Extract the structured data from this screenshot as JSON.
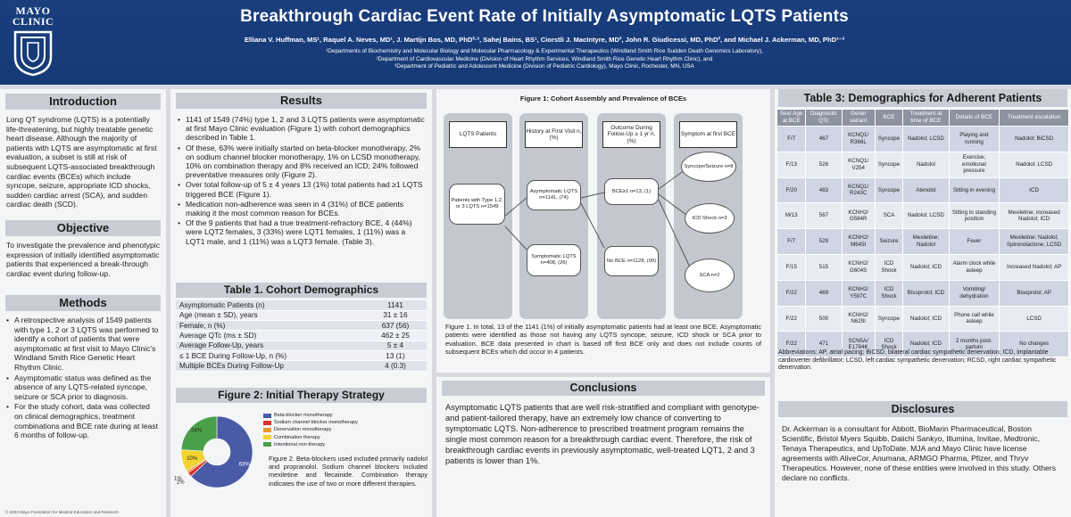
{
  "header": {
    "logo_line1": "MAYO",
    "logo_line2": "CLINIC",
    "title": "Breakthrough Cardiac Event Rate of Initially Asymptomatic LQTS Patients",
    "authors": "Elliana V. Huffman, MS¹, Raquel A. Neves, MD¹, J. Martijn Bos, MD, PhD²·³, Sahej Bains, BS¹, Ciorstli J. MacIntyre, MD², John R. Giudicessi, MD, PhD², and Michael J. Ackerman, MD, PhD¹⁻³",
    "affiliations": [
      "¹Departments of Biochemistry and Molecular Biology and Molecular Pharmacology & Experimental Therapeutics (Windland Smith Rice Sudden Death Genomics Laboratory),",
      "²Department of Cardiovascular Medicine (Division of Heart Rhythm Services, Windland Smith Rice Genetic Heart Rhythm Clinic), and",
      "³Department of Pediatric and Adolescent Medicine (Division of Pediatric Cardiology), Mayo Clinic, Rochester, MN, USA"
    ]
  },
  "intro": {
    "title": "Introduction",
    "text": "Long QT syndrome (LQTS) is a potentially life-threatening, but highly treatable genetic heart disease. Although the majority of patients with LQTS are asymptomatic at first evaluation, a subset is still at risk of subsequent LQTS-associated breakthrough cardiac events (BCEs) which include syncope, seizure, appropriate ICD shocks, sudden cardiac arrest (SCA), and sudden cardiac death (SCD)."
  },
  "objective": {
    "title": "Objective",
    "text": "To investigate the prevalence and phenotypic expression of initially identified asymptomatic patients that experienced a break-through cardiac event during follow-up."
  },
  "methods": {
    "title": "Methods",
    "items": [
      "A retrospective analysis of 1549 patients with type 1, 2 or 3 LQTS was performed to identify a cohort of patients that were asymptomatic at first visit to Mayo Clinic's Windland Smith Rice Genetic Heart Rhythm Clinic.",
      "Asymptomatic status was defined as the absence of any LQTS-related syncope, seizure or SCA prior to diagnosis.",
      "For the study cohort, data was collected on clinical demographics, treatment combinations and BCE rate during at least 6 months of follow-up."
    ]
  },
  "footer": "© 2023 Mayo Foundation for Medical Education and Research",
  "results": {
    "title": "Results",
    "items": [
      "1141 of 1549 (74%) type 1, 2 and 3 LQTS patients were asymptomatic at first Mayo Clinic evaluation (Figure 1) with cohort demographics described in Table 1.",
      "Of these, 63% were initially started on beta-blocker monotherapy, 2% on sodium channel blocker monotherapy, 1% on LCSD monotherapy, 10% on combination therapy and 8% received an ICD; 24% followed preventative measures only (Figure 2).",
      "Over total follow-up of 5 ± 4 years 13 (1%) total patients had ≥1 LQTS triggered BCE (Figure 1).",
      "Medication non-adherence was seen in 4 (31%) of BCE patients making it the most common reason for BCEs.",
      "Of the 9 patients that had a true treatment-refractory BCE, 4 (44%) were LQT2 females, 3 (33%) were LQT1 females, 1 (11%) was a LQT1 male, and 1 (11%) was a LQT3 female. (Table 3)."
    ]
  },
  "table1": {
    "title": "Table 1. Cohort Demographics",
    "rows": [
      [
        "Asymptomatic Patients (n)",
        "1141"
      ],
      [
        "Age (mean ± SD), years",
        "31 ± 16"
      ],
      [
        "Female, n (%)",
        "637 (56)"
      ],
      [
        "Average QTc (ms ± SD)",
        "462 ± 25"
      ],
      [
        "Average Follow-Up, years",
        "5 ± 4"
      ],
      [
        "≤ 1 BCE During Follow-Up, n (%)",
        "13 (1)"
      ],
      [
        "Multiple BCEs During Follow-Up",
        "4 (0.3)"
      ]
    ]
  },
  "figure2": {
    "title": "Figure 2: Initial Therapy Strategy",
    "caption": "Figure 2. Beta-blockers used included primarily nadolol and propranolol. Sodium channel blockers included mexiletine and flecainide. Combination therapy indicates the use of two or more different therapies."
  },
  "chart_data": {
    "type": "pie",
    "categories": [
      "Beta-blocker monotherapy",
      "Sodium channel blocker monotherapy",
      "Denervation monotherapy",
      "Combination therapy",
      "Intentional non-therapy"
    ],
    "values": [
      63,
      2,
      1,
      10,
      24
    ],
    "value_labels": [
      "63%",
      "2%",
      "1%",
      "10%",
      "24%"
    ],
    "colors": [
      "#4a5aa6",
      "#d9332b",
      "#e8952e",
      "#f2d230",
      "#4aa04a"
    ],
    "legend_position": "right"
  },
  "figure1": {
    "title": "Figure 1: Cohort Assembly and Prevalence of BCEs",
    "headers": [
      "LQTS Patients",
      "History at First Visit n, (%)",
      "Outcome During Follow-Up ≥ 1 yr n, (%)",
      "Symptom at first BCE"
    ],
    "nodes": {
      "patients": "Patients with Type 1,2, or 3 LQTS n=1549",
      "asym": "Asymptomatic LQTS n=1141, (74)",
      "sym": "Symptomatic LQTS n=408, (26)",
      "bce": "BCE≥1 n=13, (1)",
      "nobce": "No BCE n=1128, (99)",
      "syncope": "Syncope/Seizure n=8",
      "icd": "ICD Shock n=3",
      "sca": "SCA n=2"
    },
    "caption": "Figure 1. In total, 13 of the 1141 (1%) of initially asymptomatic patients had at least one BCE. Asymptomatic patients were identified as those not having any LQTS syncope, seizure, ICD shock or SCA prior to evaluation. BCE data presented in chart is based off first BCE only and does not include counts of subsequent BCEs which did occur in 4 patients."
  },
  "conclusions": {
    "title": "Conclusions",
    "text": "Asymptomatic LQTS patients that are well risk-stratified and compliant with genotype-and patient-tailored therapy, have an extremely low chance of converting to symptomatic LQTS. Non-adherence to prescribed treatment program remains the single most common reason for a breakthrough cardiac event. Therefore, the risk of breakthrough cardiac events in previously asymptomatic, well-treated LQT1, 2 and 3 patients is lower than 1%."
  },
  "table3": {
    "title": "Table 3: Demographics for Adherent Patients",
    "headers": [
      "Sex/ Age at BCE",
      "Diagnostic QTc",
      "Gene/ variant",
      "BCE",
      "Treatment at time of BCE",
      "Details of BCE",
      "Treatment escalation"
    ],
    "rows": [
      [
        "F/7",
        "467",
        "KCNQ1/ R366L",
        "Syncope",
        "Nadolol; LCSD",
        "Playing and running",
        "Nadolol; BiCSD"
      ],
      [
        "F/13",
        "526",
        "KCNQ1/ V254",
        "Syncope",
        "Nadolol",
        "Exercise; emotional pressure",
        "Nadolol; LCSD"
      ],
      [
        "F/20",
        "483",
        "KCNQ1/ R243C",
        "Syncope",
        "Atenolol",
        "Sitting in evening",
        "ICD"
      ],
      [
        "M/13",
        "567",
        "KCNH2/ G584R",
        "SCA",
        "Nadolol; LCSD",
        "Sitting to standing position",
        "Mexiletine; increased Nadolol; ICD"
      ],
      [
        "F/7",
        "529",
        "KCNH2/ M645I",
        "Seizure",
        "Mexiletine; Nadolol",
        "Fever",
        "Mexiletine; Nadolol; Spironolactone; LCSD"
      ],
      [
        "F/15",
        "515",
        "KCNH2/ G604S",
        "ICD Shock",
        "Nadolol; ICD",
        "Alarm clock while asleep",
        "Increased Nadolol; AP"
      ],
      [
        "F/22",
        "469",
        "KCNH2/ Y597C",
        "ICD Shock",
        "Bisoprolol; ICD",
        "Vomiting/ dehydration",
        "Bisoprolol; AP"
      ],
      [
        "F/22",
        "500",
        "KCNH2/ N629I",
        "Syncope",
        "Nadolol; ICD",
        "Phone call while asleep",
        "LCSD"
      ],
      [
        "F/22",
        "471",
        "SCN5A/ E1784K",
        "ICD Shock",
        "Nadolol; ICD",
        "2 months post-partum",
        "No changes"
      ]
    ],
    "abbreviations": "Abbreviations: AP, atrial pacing; BiCSD, bilateral cardiac sympathetic denervation; ICD, implantable cardioverter defibrillator; LCSD, left cardiac sympathetic denervation; RCSD, right cardiac sympathetic denervation."
  },
  "disclosures": {
    "title": "Disclosures",
    "text": "Dr. Ackerman is a consultant for Abbott, BioMarin Pharmaceutical, Boston Scientific, Bristol Myers Squibb, Daiichi Sankyo, Illumina, Invitae, Medtronic, Tenaya Therapeutics, and UpToDate. MJA and Mayo Clinic have license agreements with AliveCor, Anumana, ARMGO Pharma, Pfizer, and Thryv Therapeutics. However, none of these entities were involved in this study. Others declare no conflicts."
  }
}
